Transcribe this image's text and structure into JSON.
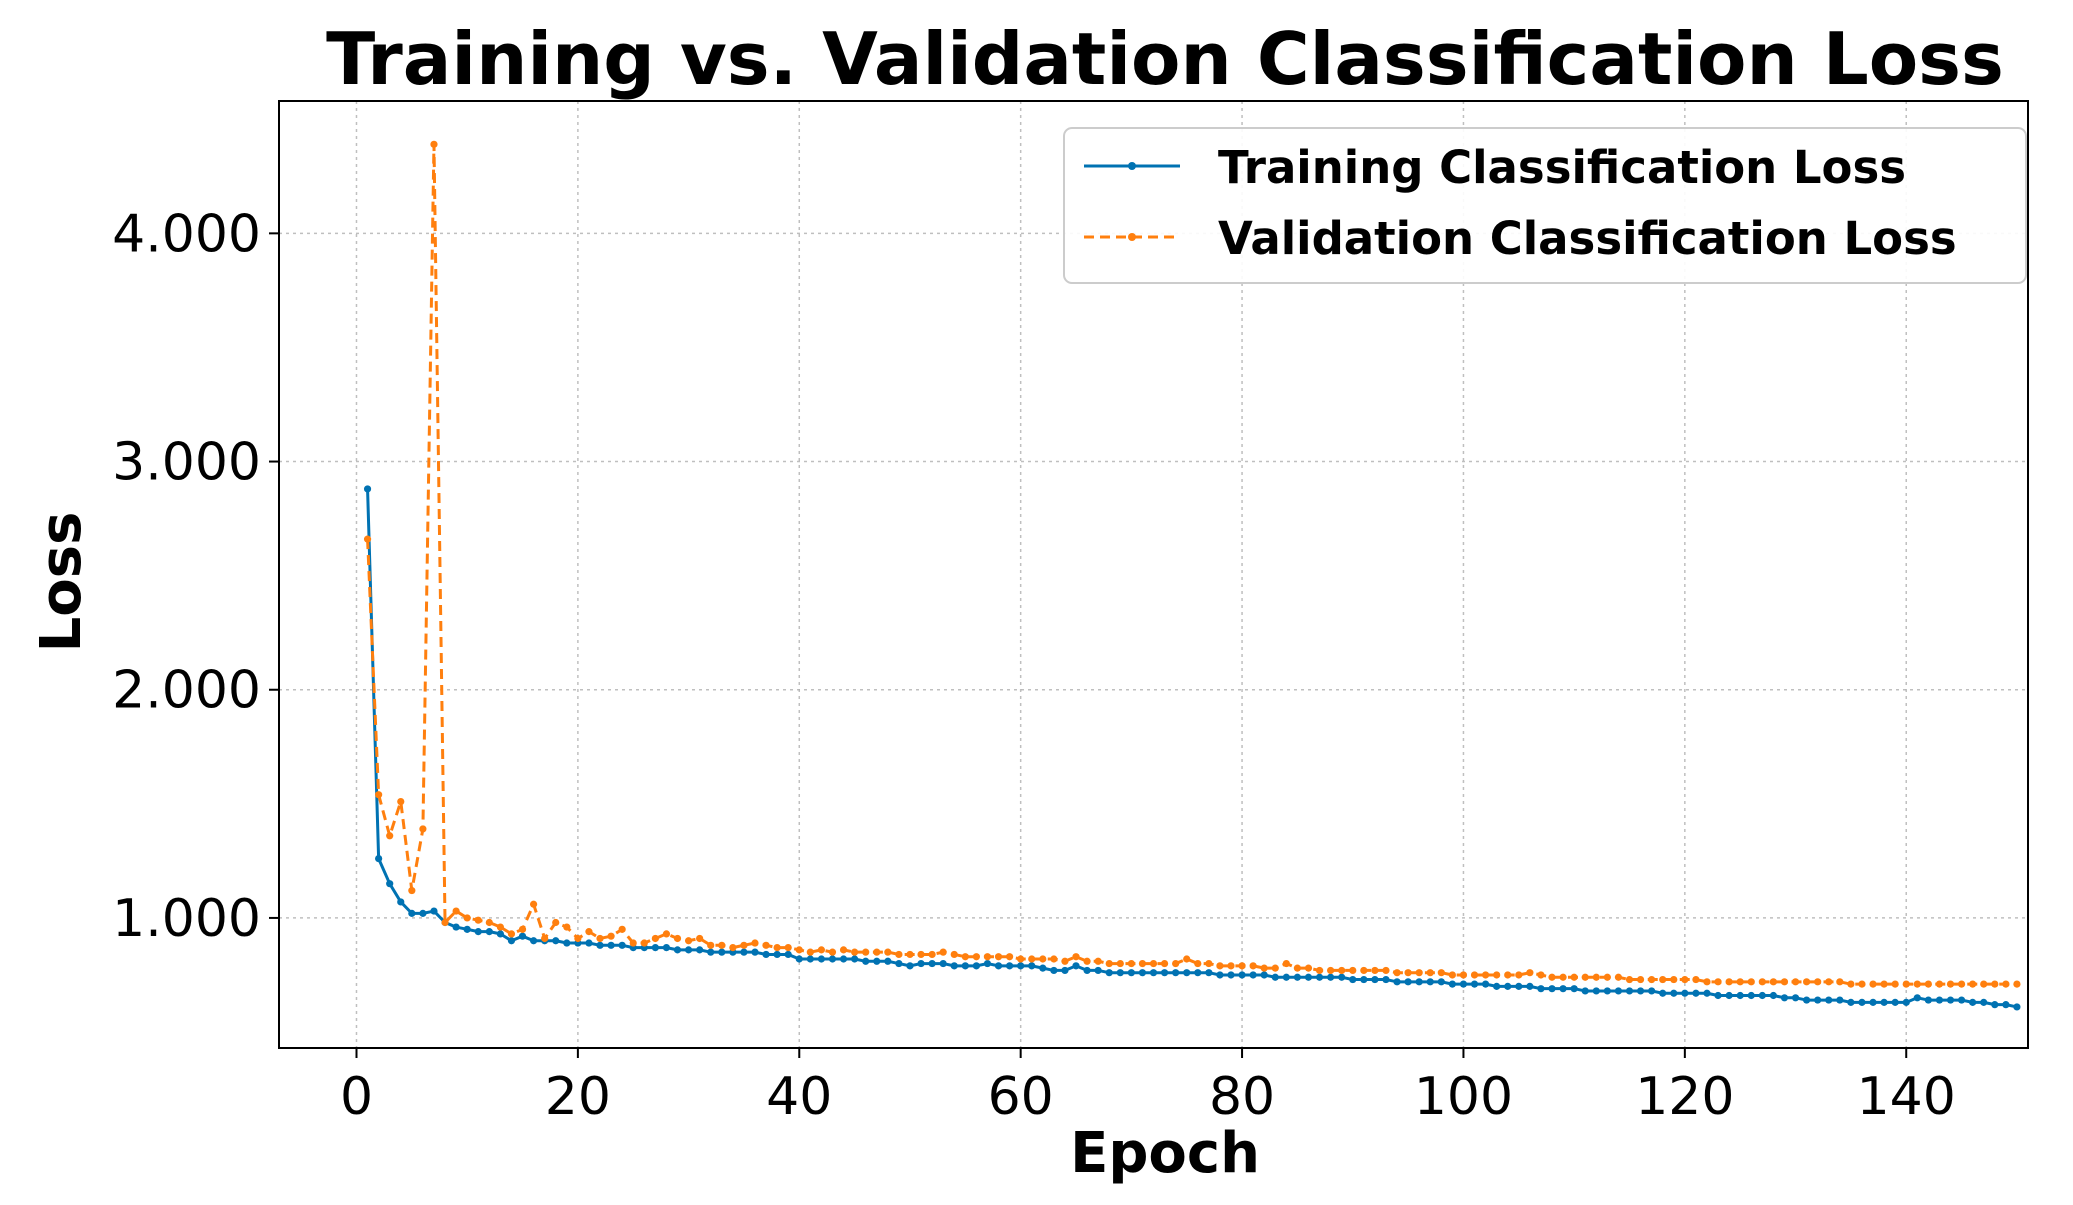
{
  "chart_data": {
    "type": "line",
    "title": "Training vs. Validation Classification Loss",
    "xlabel": "Epoch",
    "ylabel": "Loss",
    "xlim": [
      -7,
      151
    ],
    "ylim": [
      0.43,
      4.58
    ],
    "xticks": [
      0,
      20,
      40,
      60,
      80,
      100,
      120,
      140
    ],
    "yticks": [
      1.0,
      2.0,
      3.0,
      4.0
    ],
    "ytick_labels": [
      "1.000",
      "2.000",
      "3.000",
      "4.000"
    ],
    "grid": true,
    "legend_position": "top-right",
    "x": [
      1,
      2,
      3,
      4,
      5,
      6,
      7,
      8,
      9,
      10,
      11,
      12,
      13,
      14,
      15,
      16,
      17,
      18,
      19,
      20,
      21,
      22,
      23,
      24,
      25,
      26,
      27,
      28,
      29,
      30,
      31,
      32,
      33,
      34,
      35,
      36,
      37,
      38,
      39,
      40,
      41,
      42,
      43,
      44,
      45,
      46,
      47,
      48,
      49,
      50,
      51,
      52,
      53,
      54,
      55,
      56,
      57,
      58,
      59,
      60,
      61,
      62,
      63,
      64,
      65,
      66,
      67,
      68,
      69,
      70,
      71,
      72,
      73,
      74,
      75,
      76,
      77,
      78,
      79,
      80,
      81,
      82,
      83,
      84,
      85,
      86,
      87,
      88,
      89,
      90,
      91,
      92,
      93,
      94,
      95,
      96,
      97,
      98,
      99,
      100,
      101,
      102,
      103,
      104,
      105,
      106,
      107,
      108,
      109,
      110,
      111,
      112,
      113,
      114,
      115,
      116,
      117,
      118,
      119,
      120,
      121,
      122,
      123,
      124,
      125,
      126,
      127,
      128,
      129,
      130,
      131,
      132,
      133,
      134,
      135,
      136,
      137,
      138,
      139,
      140,
      141,
      142,
      143,
      144,
      145,
      146,
      147,
      148,
      149,
      150
    ],
    "series": [
      {
        "name": "Training Classification Loss",
        "color": "#0072B2",
        "linestyle": "solid",
        "values": [
          2.88,
          1.26,
          1.15,
          1.07,
          1.02,
          1.02,
          1.03,
          0.98,
          0.96,
          0.95,
          0.94,
          0.94,
          0.93,
          0.9,
          0.92,
          0.9,
          0.9,
          0.9,
          0.89,
          0.89,
          0.89,
          0.88,
          0.88,
          0.88,
          0.87,
          0.87,
          0.87,
          0.87,
          0.86,
          0.86,
          0.86,
          0.85,
          0.85,
          0.85,
          0.85,
          0.85,
          0.84,
          0.84,
          0.84,
          0.82,
          0.82,
          0.82,
          0.82,
          0.82,
          0.82,
          0.81,
          0.81,
          0.81,
          0.8,
          0.79,
          0.8,
          0.8,
          0.8,
          0.79,
          0.79,
          0.79,
          0.8,
          0.79,
          0.79,
          0.79,
          0.79,
          0.78,
          0.77,
          0.77,
          0.79,
          0.77,
          0.77,
          0.76,
          0.76,
          0.76,
          0.76,
          0.76,
          0.76,
          0.76,
          0.76,
          0.76,
          0.76,
          0.75,
          0.75,
          0.75,
          0.75,
          0.75,
          0.74,
          0.74,
          0.74,
          0.74,
          0.74,
          0.74,
          0.74,
          0.73,
          0.73,
          0.73,
          0.73,
          0.72,
          0.72,
          0.72,
          0.72,
          0.72,
          0.71,
          0.71,
          0.71,
          0.71,
          0.7,
          0.7,
          0.7,
          0.7,
          0.69,
          0.69,
          0.69,
          0.69,
          0.68,
          0.68,
          0.68,
          0.68,
          0.68,
          0.68,
          0.68,
          0.67,
          0.67,
          0.67,
          0.67,
          0.67,
          0.66,
          0.66,
          0.66,
          0.66,
          0.66,
          0.66,
          0.65,
          0.65,
          0.64,
          0.64,
          0.64,
          0.64,
          0.63,
          0.63,
          0.63,
          0.63,
          0.63,
          0.63,
          0.65,
          0.64,
          0.64,
          0.64,
          0.64,
          0.63,
          0.63,
          0.62,
          0.62,
          0.61
        ]
      },
      {
        "name": "Validation Classification Loss",
        "color": "#FF7F0E",
        "linestyle": "dashed",
        "values": [
          2.66,
          1.54,
          1.36,
          1.51,
          1.12,
          1.39,
          4.39,
          0.98,
          1.03,
          1.0,
          0.99,
          0.98,
          0.96,
          0.93,
          0.95,
          1.06,
          0.91,
          0.98,
          0.96,
          0.91,
          0.94,
          0.91,
          0.92,
          0.95,
          0.89,
          0.89,
          0.91,
          0.93,
          0.91,
          0.9,
          0.91,
          0.88,
          0.88,
          0.87,
          0.88,
          0.89,
          0.88,
          0.87,
          0.87,
          0.86,
          0.85,
          0.86,
          0.85,
          0.86,
          0.85,
          0.85,
          0.85,
          0.85,
          0.84,
          0.84,
          0.84,
          0.84,
          0.85,
          0.84,
          0.83,
          0.83,
          0.83,
          0.83,
          0.83,
          0.82,
          0.82,
          0.82,
          0.82,
          0.81,
          0.83,
          0.81,
          0.81,
          0.8,
          0.8,
          0.8,
          0.8,
          0.8,
          0.8,
          0.8,
          0.82,
          0.8,
          0.8,
          0.79,
          0.79,
          0.79,
          0.79,
          0.78,
          0.78,
          0.8,
          0.78,
          0.78,
          0.77,
          0.77,
          0.77,
          0.77,
          0.77,
          0.77,
          0.77,
          0.76,
          0.76,
          0.76,
          0.76,
          0.76,
          0.75,
          0.75,
          0.75,
          0.75,
          0.75,
          0.75,
          0.75,
          0.76,
          0.75,
          0.74,
          0.74,
          0.74,
          0.74,
          0.74,
          0.74,
          0.74,
          0.73,
          0.73,
          0.73,
          0.73,
          0.73,
          0.73,
          0.73,
          0.72,
          0.72,
          0.72,
          0.72,
          0.72,
          0.72,
          0.72,
          0.72,
          0.72,
          0.72,
          0.72,
          0.72,
          0.72,
          0.71,
          0.71,
          0.71,
          0.71,
          0.71,
          0.71,
          0.71,
          0.71,
          0.71,
          0.71,
          0.71,
          0.71,
          0.71,
          0.71,
          0.71,
          0.71
        ]
      }
    ]
  }
}
